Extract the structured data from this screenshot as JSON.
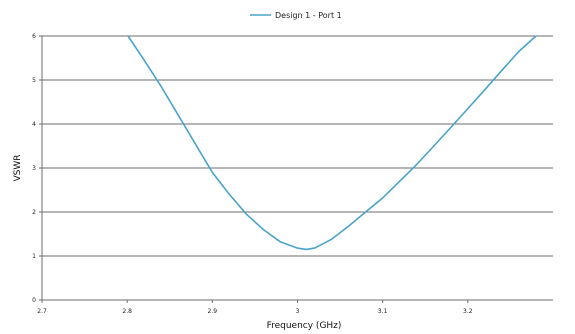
{
  "chart_data": {
    "type": "line",
    "title": "",
    "xlabel": "Frequency (GHz)",
    "ylabel": "VSWR",
    "xlim": [
      2.7,
      3.3
    ],
    "ylim": [
      0,
      6
    ],
    "x_ticks": [
      "2.7",
      "2.8",
      "2.9",
      "3",
      "3.1",
      "3.2"
    ],
    "y_ticks": [
      "0",
      "1",
      "2",
      "3",
      "4",
      "5",
      "6"
    ],
    "grid": "horizontal",
    "legend_position": "top",
    "series": [
      {
        "name": "Design 1 - Port 1",
        "color": "#4aa3c9",
        "x": [
          2.801,
          2.82,
          2.84,
          2.86,
          2.88,
          2.9,
          2.92,
          2.94,
          2.96,
          2.98,
          3.0,
          3.01,
          3.02,
          3.04,
          3.06,
          3.08,
          3.1,
          3.12,
          3.14,
          3.16,
          3.18,
          3.2,
          3.22,
          3.24,
          3.26,
          3.28
        ],
        "y": [
          6.0,
          5.45,
          4.85,
          4.2,
          3.55,
          2.9,
          2.4,
          1.95,
          1.6,
          1.32,
          1.18,
          1.15,
          1.18,
          1.38,
          1.68,
          2.0,
          2.32,
          2.7,
          3.08,
          3.5,
          3.92,
          4.35,
          4.78,
          5.22,
          5.65,
          6.0
        ]
      }
    ]
  }
}
